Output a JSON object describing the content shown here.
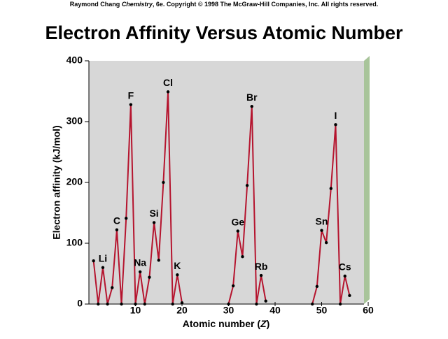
{
  "credit": {
    "author": "Raymond Chang",
    "book": "Chemistry",
    "rest": ", 6e.  Copyright © 1998 The McGraw-Hill Companies, Inc. All rights reserved."
  },
  "chart_data": {
    "type": "line",
    "title": "Electron Affinity Versus Atomic Number",
    "xlabel_parts": [
      "Atomic number (",
      "Z",
      ")"
    ],
    "ylabel": "Electron affinity (kJ/mol)",
    "x": [
      1,
      2,
      3,
      4,
      5,
      6,
      7,
      8,
      9,
      10,
      11,
      12,
      13,
      14,
      15,
      16,
      17,
      18,
      19,
      20,
      21,
      22,
      23,
      24,
      25,
      26,
      27,
      28,
      29,
      30,
      31,
      32,
      33,
      34,
      35,
      36,
      37,
      38,
      39,
      40,
      41,
      42,
      43,
      44,
      45,
      46,
      47,
      48,
      49,
      50,
      51,
      52,
      53,
      54,
      55,
      56
    ],
    "series": [
      {
        "color": "#b5142e",
        "values": [
          71,
          0,
          60,
          0,
          27,
          122,
          0,
          141,
          328,
          0,
          53,
          0,
          44,
          134,
          72,
          200,
          349,
          0,
          48,
          2,
          null,
          null,
          null,
          null,
          null,
          null,
          null,
          null,
          null,
          0,
          30,
          120,
          78,
          195,
          325,
          0,
          47,
          5,
          null,
          null,
          null,
          null,
          null,
          null,
          null,
          null,
          null,
          0,
          29,
          121,
          101,
          190,
          295,
          0,
          46,
          14
        ],
        "point_labels": [
          null,
          null,
          "Li",
          null,
          null,
          "C",
          null,
          null,
          "F",
          null,
          "Na",
          null,
          null,
          "Si",
          null,
          null,
          "Cl",
          null,
          "K",
          null,
          null,
          null,
          null,
          null,
          null,
          null,
          null,
          null,
          null,
          null,
          null,
          "Ge",
          null,
          null,
          "Br",
          null,
          "Rb",
          null,
          null,
          null,
          null,
          null,
          null,
          null,
          null,
          null,
          null,
          null,
          null,
          "Sn",
          null,
          null,
          "I",
          null,
          "Cs",
          null
        ]
      }
    ],
    "xlim": [
      0,
      60
    ],
    "xticks": [
      10,
      20,
      30,
      40,
      50,
      60
    ],
    "ylim": [
      0,
      400
    ],
    "yticks": [
      0,
      100,
      200,
      300,
      400
    ]
  }
}
